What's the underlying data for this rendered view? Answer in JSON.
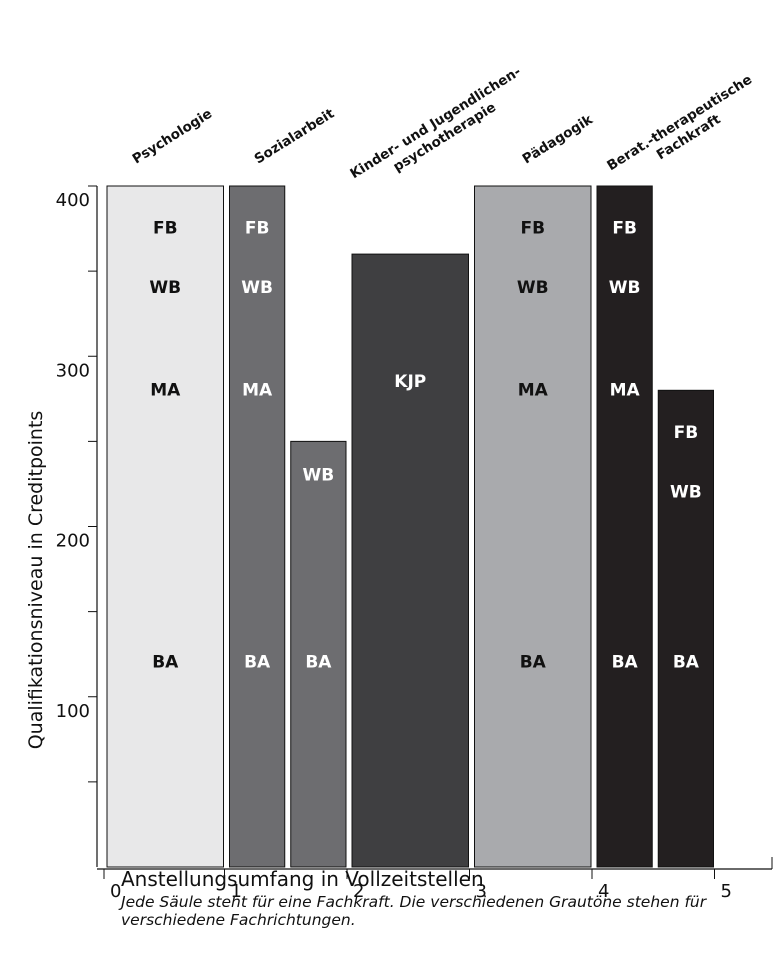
{
  "chart_data": {
    "type": "bar",
    "xlabel": "Anstellungsumfang in Vollzeitstellen",
    "ylabel": "Qualifikationsniveau in Creditpoints",
    "xlim": [
      0,
      5.5
    ],
    "ylim": [
      0,
      400
    ],
    "x_ticks": [
      "0",
      "1",
      "2",
      "3",
      "4",
      "5"
    ],
    "y_ticks": [
      "100",
      "200",
      "300",
      "400"
    ],
    "caption": "Jede Säule steht für eine Fachkraft. Die verschiedenen Grautöne stehen für verschiedene Fachrichtungen.",
    "groups": [
      {
        "label": "Psychologie",
        "color": "#e8e8e9"
      },
      {
        "label": "Sozialarbeit",
        "color": "#6d6d70"
      },
      {
        "label": "Kinder- und Jugendlichen-\npsychotherapie",
        "color": "#3f3f41"
      },
      {
        "label": "Pädagogik",
        "color": "#a9aaad"
      },
      {
        "label": "Berat.-therapeutische\nFachkraft",
        "color": "#231f20"
      }
    ],
    "bars": [
      {
        "group": "Psychologie",
        "x0": 0,
        "x1": 1,
        "value": 400,
        "labels": [
          "FB",
          "WB",
          "MA",
          "BA"
        ]
      },
      {
        "group": "Sozialarbeit",
        "x0": 1,
        "x1": 1.5,
        "value": 400,
        "labels": [
          "FB",
          "WB",
          "MA",
          "BA"
        ]
      },
      {
        "group": "Sozialarbeit",
        "x0": 1.5,
        "x1": 2,
        "value": 250,
        "labels": [
          "WB",
          "BA"
        ]
      },
      {
        "group": "Kinder- und Jugendlichen-\npsychotherapie",
        "x0": 2,
        "x1": 3,
        "value": 360,
        "labels": [
          "KJP"
        ]
      },
      {
        "group": "Pädagogik",
        "x0": 3,
        "x1": 4,
        "value": 400,
        "labels": [
          "FB",
          "WB",
          "MA",
          "BA"
        ]
      },
      {
        "group": "Berat.-therapeutische\nFachkraft",
        "x0": 4,
        "x1": 4.5,
        "value": 400,
        "labels": [
          "FB",
          "WB",
          "MA",
          "BA"
        ]
      },
      {
        "group": "Berat.-therapeutische\nFachkraft",
        "x0": 4.5,
        "x1": 5,
        "value": 280,
        "labels": [
          "FB",
          "WB",
          "BA"
        ]
      }
    ],
    "level_values": {
      "FB": 375,
      "WB": 340,
      "MA": 280,
      "BA": 120,
      "KJP": 285,
      "FB_short": 255,
      "WB_short": 220
    }
  }
}
